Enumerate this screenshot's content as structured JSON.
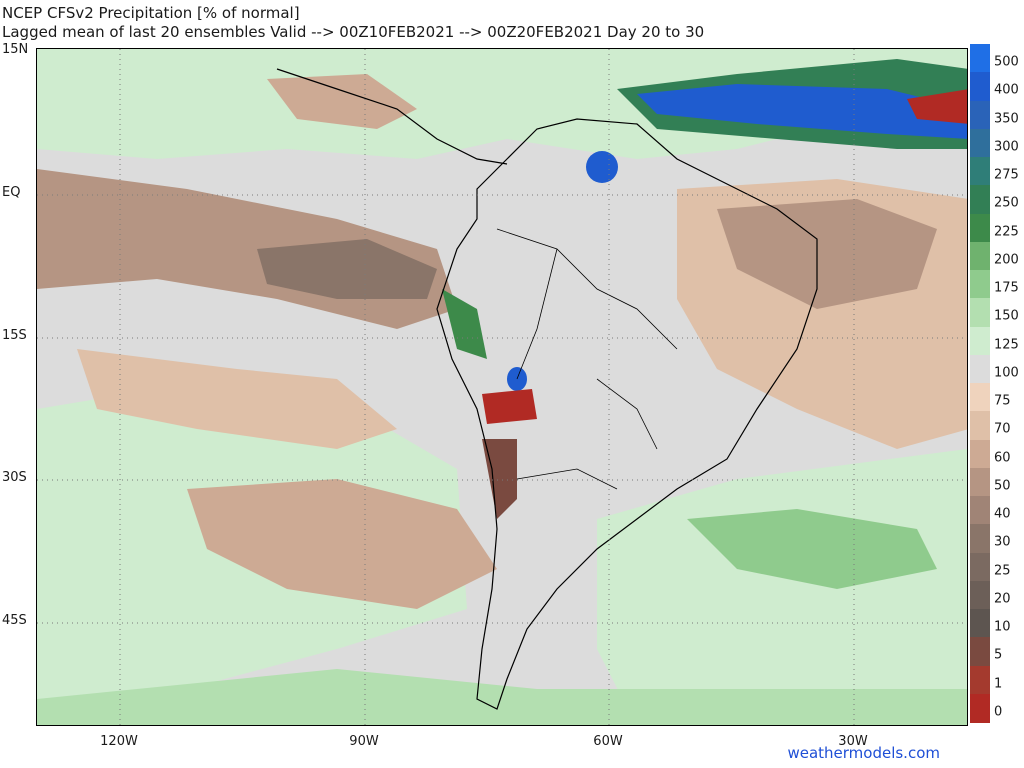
{
  "title_line1": "NCEP CFSv2 Precipitation [% of normal]",
  "title_line2": "Lagged mean of last 20 ensembles Valid --> 00Z10FEB2021 --> 00Z20FEB2021  Day 20 to 30",
  "lat_labels": [
    "15N",
    "EQ",
    "15S",
    "30S",
    "45S"
  ],
  "lon_labels": [
    "120W",
    "90W",
    "60W",
    "30W"
  ],
  "credit": "weathermodels.com",
  "colorbar": {
    "labels": [
      "500",
      "400",
      "350",
      "300",
      "275",
      "250",
      "225",
      "200",
      "175",
      "150",
      "125",
      "100",
      "75",
      "70",
      "60",
      "50",
      "40",
      "30",
      "25",
      "20",
      "10",
      "5",
      "1",
      "0"
    ],
    "colors": [
      "#1f6fe6",
      "#1f5ccf",
      "#2a63b8",
      "#2f6f9c",
      "#2f7e78",
      "#327f55",
      "#3d8a4a",
      "#6fb26e",
      "#8fcb8d",
      "#b3dfb0",
      "#cfeccf",
      "#dcdcdc",
      "#efd3bd",
      "#dfc0a8",
      "#cdaa94",
      "#b59583",
      "#a08476",
      "#8a7569",
      "#7b6a61",
      "#6c5f58",
      "#5d5550",
      "#7a4a40",
      "#a43a2e",
      "#b12a24"
    ]
  }
}
